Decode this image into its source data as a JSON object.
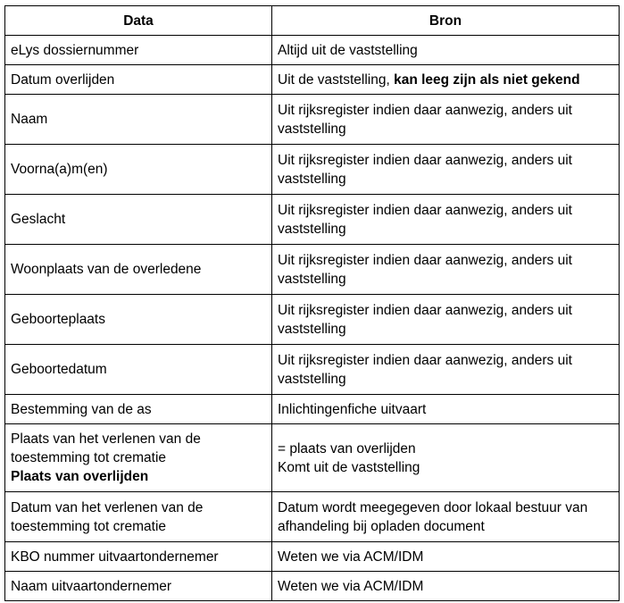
{
  "headers": {
    "data": "Data",
    "bron": "Bron"
  },
  "rows": [
    {
      "data": "eLys dossiernummer",
      "bron": "Altijd uit de vaststelling"
    },
    {
      "data": "Datum overlijden",
      "bron": "Uit de vaststelling,",
      "bron_bold": "kan leeg zijn als niet gekend"
    },
    {
      "data": "Naam",
      "bron": "Uit rijksregister indien daar aanwezig, anders uit vaststelling"
    },
    {
      "data": "Voorna(a)m(en)",
      "bron": "Uit rijksregister indien daar aanwezig, anders uit vaststelling"
    },
    {
      "data": "Geslacht",
      "bron": "Uit rijksregister indien daar aanwezig, anders uit vaststelling"
    },
    {
      "data": "Woonplaats van de overledene",
      "bron": "Uit rijksregister indien daar aanwezig, anders uit vaststelling"
    },
    {
      "data": "Geboorteplaats",
      "bron": "Uit rijksregister indien daar aanwezig, anders uit vaststelling"
    },
    {
      "data": "Geboortedatum",
      "bron": "Uit rijksregister indien daar aanwezig, anders uit vaststelling"
    },
    {
      "data": "Bestemming van de as",
      "bron": "Inlichtingenfiche uitvaart"
    },
    {
      "data": "Plaats van het verlenen van de toestemming tot crematie",
      "data_bold": "Plaats van overlijden",
      "bron": "= plaats van overlijden",
      "bron_line2": "Komt uit de vaststelling"
    },
    {
      "data": "Datum van het verlenen van de toestemming tot crematie",
      "bron": "Datum wordt meegegeven door lokaal bestuur van afhandeling bij opladen document"
    },
    {
      "data": "KBO nummer uitvaartondernemer",
      "bron": "Weten we via ACM/IDM"
    },
    {
      "data": "Naam uitvaartondernemer",
      "bron": "Weten we via ACM/IDM"
    }
  ]
}
